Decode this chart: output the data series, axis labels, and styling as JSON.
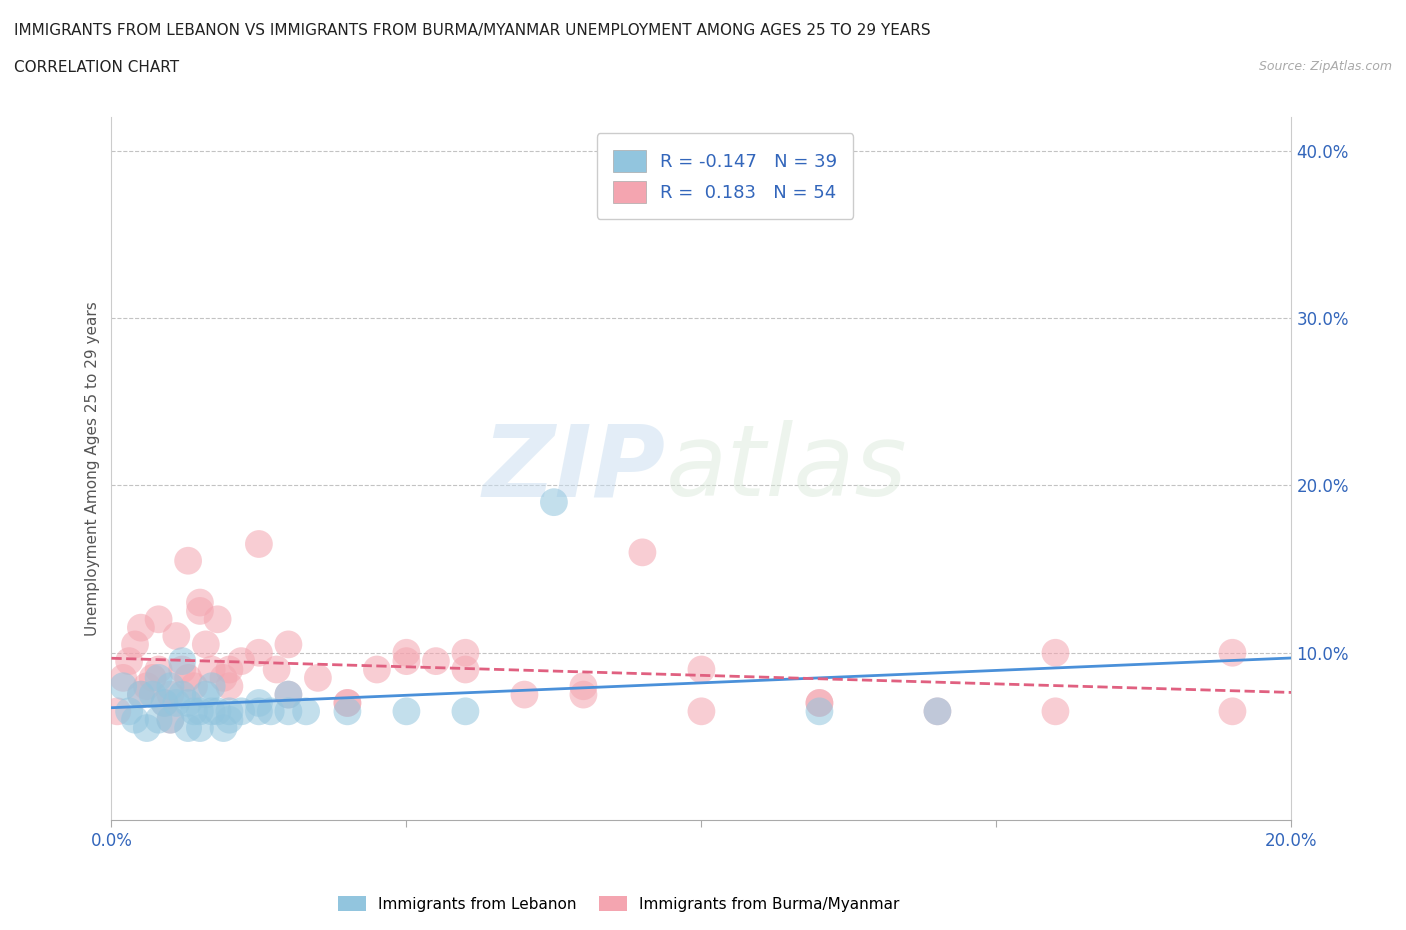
{
  "title_line1": "IMMIGRANTS FROM LEBANON VS IMMIGRANTS FROM BURMA/MYANMAR UNEMPLOYMENT AMONG AGES 25 TO 29 YEARS",
  "title_line2": "CORRELATION CHART",
  "source_text": "Source: ZipAtlas.com",
  "ylabel": "Unemployment Among Ages 25 to 29 years",
  "xlim": [
    0.0,
    0.2
  ],
  "ylim": [
    0.0,
    0.42
  ],
  "x_ticks": [
    0.0,
    0.05,
    0.1,
    0.15,
    0.2
  ],
  "x_tick_labels": [
    "0.0%",
    "",
    "",
    "",
    "20.0%"
  ],
  "y_ticks": [
    0.1,
    0.2,
    0.3,
    0.4
  ],
  "y_tick_labels": [
    "10.0%",
    "20.0%",
    "30.0%",
    "40.0%"
  ],
  "watermark_zip": "ZIP",
  "watermark_atlas": "atlas",
  "legend_r1": "R = -0.147   N = 39",
  "legend_r2": "R =  0.183   N = 54",
  "color_lebanon": "#92C5DE",
  "color_burma": "#F4A5B0",
  "trend_color_lebanon": "#4A90D9",
  "trend_color_burma": "#E06080",
  "lebanon_scatter_x": [
    0.002,
    0.003,
    0.004,
    0.005,
    0.006,
    0.007,
    0.008,
    0.009,
    0.01,
    0.011,
    0.012,
    0.013,
    0.014,
    0.015,
    0.016,
    0.017,
    0.018,
    0.019,
    0.02,
    0.022,
    0.025,
    0.027,
    0.03,
    0.033,
    0.04,
    0.012,
    0.015,
    0.008,
    0.01,
    0.013,
    0.017,
    0.02,
    0.025,
    0.03,
    0.075,
    0.12,
    0.05,
    0.06,
    0.14
  ],
  "lebanon_scatter_y": [
    0.08,
    0.065,
    0.06,
    0.075,
    0.055,
    0.075,
    0.06,
    0.07,
    0.06,
    0.07,
    0.095,
    0.07,
    0.065,
    0.065,
    0.075,
    0.065,
    0.065,
    0.055,
    0.065,
    0.065,
    0.065,
    0.065,
    0.065,
    0.065,
    0.065,
    0.075,
    0.055,
    0.085,
    0.08,
    0.055,
    0.08,
    0.06,
    0.07,
    0.075,
    0.19,
    0.065,
    0.065,
    0.065,
    0.065
  ],
  "burma_scatter_x": [
    0.001,
    0.002,
    0.003,
    0.004,
    0.005,
    0.006,
    0.007,
    0.008,
    0.009,
    0.01,
    0.011,
    0.012,
    0.013,
    0.014,
    0.015,
    0.016,
    0.017,
    0.018,
    0.019,
    0.02,
    0.022,
    0.025,
    0.028,
    0.03,
    0.035,
    0.04,
    0.045,
    0.05,
    0.055,
    0.06,
    0.07,
    0.08,
    0.09,
    0.1,
    0.12,
    0.14,
    0.16,
    0.19,
    0.005,
    0.008,
    0.01,
    0.013,
    0.015,
    0.02,
    0.025,
    0.03,
    0.04,
    0.05,
    0.06,
    0.08,
    0.1,
    0.12,
    0.16,
    0.19
  ],
  "burma_scatter_y": [
    0.065,
    0.085,
    0.095,
    0.105,
    0.075,
    0.08,
    0.085,
    0.09,
    0.07,
    0.075,
    0.11,
    0.09,
    0.085,
    0.08,
    0.13,
    0.105,
    0.09,
    0.12,
    0.085,
    0.08,
    0.095,
    0.1,
    0.09,
    0.105,
    0.085,
    0.07,
    0.09,
    0.095,
    0.095,
    0.1,
    0.075,
    0.075,
    0.16,
    0.065,
    0.07,
    0.065,
    0.065,
    0.065,
    0.115,
    0.12,
    0.06,
    0.155,
    0.125,
    0.09,
    0.165,
    0.075,
    0.07,
    0.1,
    0.09,
    0.08,
    0.09,
    0.07,
    0.1,
    0.1
  ],
  "bottom_legend_labels": [
    "Immigrants from Lebanon",
    "Immigrants from Burma/Myanmar"
  ]
}
